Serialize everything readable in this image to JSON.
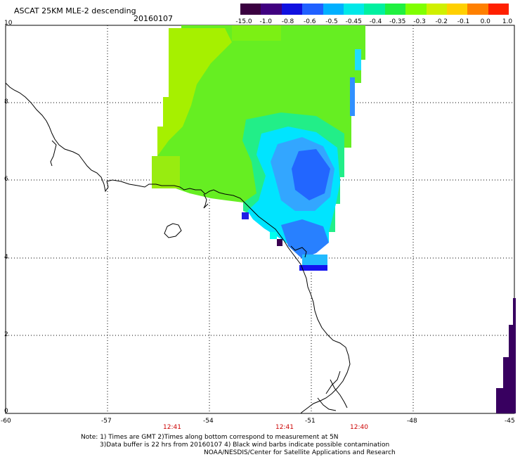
{
  "header": {
    "title": "ASCAT 25KM MLE-2 descending",
    "date": "20160107"
  },
  "colorbar": {
    "labels": [
      "-15.0",
      "-1.0",
      "-0.8",
      "-0.6",
      "-0.5",
      "-0.45",
      "-0.4",
      "-0.35",
      "-0.3",
      "-0.2",
      "-0.1",
      "0.0",
      "1.0"
    ],
    "colors": [
      "#3a0040",
      "#400080",
      "#1010e0",
      "#2060ff",
      "#00b0ff",
      "#00e8e8",
      "#00f0a0",
      "#20f040",
      "#80ff00",
      "#d0f000",
      "#ffd000",
      "#ff8000",
      "#ff2000"
    ]
  },
  "axes": {
    "y_labels": [
      "10",
      "8",
      "6",
      "4",
      "2",
      "0"
    ],
    "x_labels": [
      "-60",
      "-57",
      "-54",
      "-51",
      "-48",
      "-45"
    ]
  },
  "times": [
    "12:41",
    "12:41",
    "12:40"
  ],
  "notes": {
    "line1": "Note: 1) Times are GMT 2)Times along bottom correspond to measurement at 5N",
    "line2": "3)Data buffer is 22 hrs from 20160107 4) Black wind barbs indicate possible contamination",
    "line3": "NOAA/NESDIS/Center for Satellite Applications and Research"
  }
}
